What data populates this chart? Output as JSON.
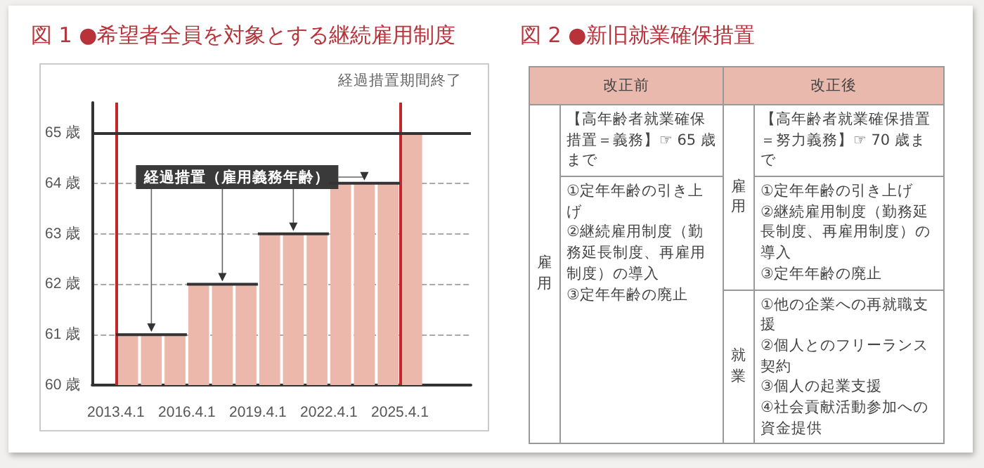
{
  "chart_data": [
    {
      "type": "histogram",
      "title": "図 1 ●希望者全員を対象とする継続雇用制度",
      "bins": [
        "2013-04-01",
        "2014-04-01",
        "2015-04-01",
        "2016-04-01",
        "2017-04-01",
        "2018-04-01",
        "2019-04-01",
        "2020-04-01",
        "2021-04-01",
        "2022-04-01",
        "2023-04-01",
        "2024-04-01",
        "2025-04-01",
        "2026-04-01"
      ],
      "values": [
        61,
        61,
        61,
        62,
        62,
        62,
        63,
        63,
        63,
        64,
        64,
        64,
        65
      ],
      "color": "#ebb8ab",
      "xlim": [
        "2012-04-01",
        "2028-04-01"
      ],
      "xticks": [
        {
          "value": "2013-04-01",
          "label": "2013.4.1"
        },
        {
          "value": "2016-04-01",
          "label": "2016.4.1"
        },
        {
          "value": "2019-04-01",
          "label": "2019.4.1"
        },
        {
          "value": "2022-04-01",
          "label": "2022.4.1"
        },
        {
          "value": "2025-04-01",
          "label": "2025.4.1"
        }
      ],
      "ylim": [
        60,
        65.6
      ],
      "yticks": [
        {
          "value": 60,
          "label": "60 歳"
        },
        {
          "value": 61,
          "label": "61 歳"
        },
        {
          "value": 62,
          "label": "62 歳"
        },
        {
          "value": 63,
          "label": "63 歳"
        },
        {
          "value": 64,
          "label": "64 歳"
        },
        {
          "value": 65,
          "label": "65 歳"
        }
      ],
      "grid": "y",
      "ref_lines": [
        {
          "axis": "x",
          "value": "2013-04-01",
          "color": "#c0282e"
        },
        {
          "axis": "x",
          "value": "2025-04-01",
          "label": "経過措置期間終了",
          "color": "#c0282e"
        },
        {
          "axis": "y",
          "value": 65,
          "color": "#333333"
        }
      ],
      "annotations": [
        {
          "text": "経過措置（雇用義務年齢）",
          "x": "2014-10-01",
          "y": 61
        }
      ]
    },
    {
      "type": "other",
      "title": "図 2 ●新旧就業確保措置",
      "annotations": [
        "改正前",
        "改正後",
        "雇用",
        "【高年齢者就業確保措置＝義務】☞ 65 歳まで",
        "①定年年齢の引き上げ\n②継続雇用制度（勤務延長制度、再雇用制度）の導入\n③定年年齢の廃止",
        "雇用",
        "【高年齢者就業確保措置＝努力義務】☞ 70 歳まで",
        "①定年年齢の引き上げ\n②継続雇用制度（勤務延長制度、再雇用制度）の導入\n③定年年齢の廃止",
        "就業",
        "①他の企業への再就職支援\n②個人とのフリーランス契約\n③個人の起業支援\n④社会貢献活動参加への資金提供"
      ]
    }
  ]
}
